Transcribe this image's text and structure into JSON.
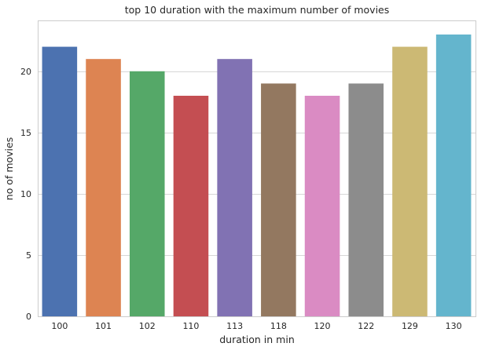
{
  "chart_data": {
    "type": "bar",
    "title": "top 10 duration with the maximum number of movies",
    "xlabel": "duration in min",
    "ylabel": "no of movies",
    "categories": [
      "100",
      "101",
      "102",
      "110",
      "113",
      "118",
      "120",
      "122",
      "129",
      "130"
    ],
    "values": [
      22,
      21,
      20,
      18,
      21,
      19,
      18,
      19,
      22,
      23
    ],
    "colors": [
      "#4c72b0",
      "#dd8452",
      "#55a868",
      "#c44e52",
      "#8172b3",
      "#937860",
      "#da8bc3",
      "#8c8c8c",
      "#ccb974",
      "#64b5cd"
    ],
    "yticks": [
      "0",
      "5",
      "10",
      "15",
      "20"
    ],
    "ylim": [
      0,
      24.15
    ],
    "grid": "horizontal",
    "legend": "none"
  }
}
